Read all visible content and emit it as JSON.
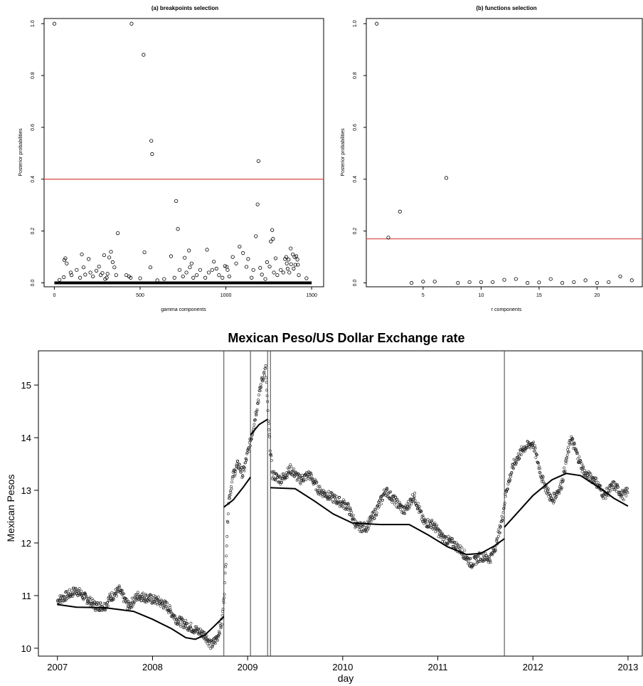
{
  "chart_data": [
    {
      "type": "scatter",
      "title": "(a) breakpoints selection",
      "xlabel": "gamma components",
      "ylabel": "Posterior probabilities",
      "xlim": [
        -60,
        1570
      ],
      "ylim": [
        -0.015,
        1.02
      ],
      "xticks": [
        0,
        500,
        1000,
        1500
      ],
      "yticks": [
        0.0,
        0.2,
        0.4,
        0.6,
        0.8,
        1.0
      ],
      "threshold": 0.4,
      "threshold_color": "#e05555",
      "baseline_range": [
        0,
        1500
      ],
      "points": [
        [
          0,
          1.0
        ],
        [
          450,
          1.0
        ],
        [
          520,
          0.88
        ],
        [
          565,
          0.548
        ],
        [
          570,
          0.497
        ],
        [
          710,
          0.316
        ],
        [
          1190,
          0.47
        ],
        [
          1185,
          0.303
        ],
        [
          720,
          0.208
        ],
        [
          370,
          0.192
        ],
        [
          1270,
          0.204
        ],
        [
          1175,
          0.18
        ],
        [
          1275,
          0.17
        ],
        [
          1262,
          0.16
        ],
        [
          330,
          0.12
        ],
        [
          525,
          0.118
        ],
        [
          890,
          0.128
        ],
        [
          1080,
          0.14
        ],
        [
          1378,
          0.133
        ],
        [
          1390,
          0.11
        ],
        [
          58,
          0.088
        ],
        [
          64,
          0.095
        ],
        [
          72,
          0.075
        ],
        [
          160,
          0.11
        ],
        [
          200,
          0.092
        ],
        [
          290,
          0.107
        ],
        [
          320,
          0.098
        ],
        [
          680,
          0.103
        ],
        [
          760,
          0.097
        ],
        [
          785,
          0.125
        ],
        [
          930,
          0.082
        ],
        [
          1040,
          0.1
        ],
        [
          1130,
          0.092
        ],
        [
          1290,
          0.095
        ],
        [
          1345,
          0.092
        ],
        [
          1352,
          0.1
        ],
        [
          1366,
          0.09
        ],
        [
          1400,
          0.1
        ],
        [
          1410,
          0.103
        ],
        [
          1417,
          0.09
        ],
        [
          1355,
          0.075
        ],
        [
          1380,
          0.072
        ],
        [
          1405,
          0.07
        ],
        [
          30,
          0.012
        ],
        [
          55,
          0.022
        ],
        [
          95,
          0.04
        ],
        [
          100,
          0.03
        ],
        [
          130,
          0.05
        ],
        [
          150,
          0.02
        ],
        [
          170,
          0.06
        ],
        [
          180,
          0.032
        ],
        [
          210,
          0.04
        ],
        [
          225,
          0.025
        ],
        [
          245,
          0.047
        ],
        [
          260,
          0.063
        ],
        [
          270,
          0.03
        ],
        [
          280,
          0.038
        ],
        [
          296,
          0.015
        ],
        [
          305,
          0.02
        ],
        [
          310,
          0.035
        ],
        [
          340,
          0.08
        ],
        [
          350,
          0.06
        ],
        [
          360,
          0.03
        ],
        [
          420,
          0.03
        ],
        [
          435,
          0.025
        ],
        [
          445,
          0.02
        ],
        [
          500,
          0.018
        ],
        [
          560,
          0.06
        ],
        [
          600,
          0.01
        ],
        [
          640,
          0.015
        ],
        [
          700,
          0.02
        ],
        [
          730,
          0.05
        ],
        [
          750,
          0.025
        ],
        [
          770,
          0.04
        ],
        [
          790,
          0.06
        ],
        [
          800,
          0.075
        ],
        [
          810,
          0.02
        ],
        [
          830,
          0.03
        ],
        [
          850,
          0.05
        ],
        [
          880,
          0.02
        ],
        [
          900,
          0.04
        ],
        [
          920,
          0.05
        ],
        [
          945,
          0.055
        ],
        [
          960,
          0.03
        ],
        [
          980,
          0.02
        ],
        [
          995,
          0.065
        ],
        [
          1005,
          0.062
        ],
        [
          1010,
          0.05
        ],
        [
          1020,
          0.025
        ],
        [
          1060,
          0.075
        ],
        [
          1100,
          0.115
        ],
        [
          1120,
          0.062
        ],
        [
          1150,
          0.02
        ],
        [
          1160,
          0.05
        ],
        [
          1200,
          0.058
        ],
        [
          1210,
          0.032
        ],
        [
          1230,
          0.015
        ],
        [
          1240,
          0.08
        ],
        [
          1255,
          0.063
        ],
        [
          1280,
          0.04
        ],
        [
          1300,
          0.03
        ],
        [
          1320,
          0.05
        ],
        [
          1335,
          0.04
        ],
        [
          1360,
          0.055
        ],
        [
          1370,
          0.04
        ],
        [
          1395,
          0.055
        ],
        [
          1420,
          0.07
        ],
        [
          1425,
          0.03
        ],
        [
          1470,
          0.018
        ]
      ]
    },
    {
      "type": "scatter",
      "title": "(b) functions selection",
      "xlabel": "r components",
      "ylabel": "Posterior probabilities",
      "xlim": [
        0.1,
        23.9
      ],
      "ylim": [
        -0.015,
        1.02
      ],
      "xticks": [
        5,
        10,
        15,
        20
      ],
      "yticks": [
        0.0,
        0.2,
        0.4,
        0.6,
        0.8,
        1.0
      ],
      "threshold": 0.17,
      "threshold_color": "#e05555",
      "points": [
        [
          1,
          1.0
        ],
        [
          2,
          0.175
        ],
        [
          3,
          0.275
        ],
        [
          4,
          0.0
        ],
        [
          5,
          0.005
        ],
        [
          6,
          0.005
        ],
        [
          7,
          0.405
        ],
        [
          8,
          0.0
        ],
        [
          9,
          0.003
        ],
        [
          10,
          0.003
        ],
        [
          11,
          0.003
        ],
        [
          12,
          0.012
        ],
        [
          13,
          0.015
        ],
        [
          14,
          0.0
        ],
        [
          15,
          0.002
        ],
        [
          16,
          0.015
        ],
        [
          17,
          0.0
        ],
        [
          18,
          0.003
        ],
        [
          19,
          0.01
        ],
        [
          20,
          0.0
        ],
        [
          21,
          0.003
        ],
        [
          22,
          0.025
        ],
        [
          23,
          0.01
        ]
      ]
    },
    {
      "type": "line",
      "title": "Mexican Peso/US Dollar Exchange rate",
      "xlabel": "day",
      "ylabel": "Mexican Pesos",
      "xlim": [
        2006.8,
        2013.15
      ],
      "ylim": [
        9.85,
        15.65
      ],
      "xticks": [
        2007,
        2008,
        2009,
        2010,
        2011,
        2012,
        2013
      ],
      "yticks": [
        10,
        11,
        12,
        13,
        14,
        15
      ],
      "breakpoints": [
        2008.75,
        2009.03,
        2009.21,
        2009.24,
        2011.7
      ],
      "fitted": [
        [
          [
            2007.0,
            10.83
          ],
          [
            2007.2,
            10.78
          ],
          [
            2007.5,
            10.77
          ],
          [
            2007.8,
            10.7
          ],
          [
            2008.0,
            10.55
          ],
          [
            2008.2,
            10.37
          ],
          [
            2008.35,
            10.2
          ],
          [
            2008.45,
            10.17
          ],
          [
            2008.55,
            10.25
          ],
          [
            2008.65,
            10.42
          ],
          [
            2008.75,
            10.6
          ]
        ],
        [
          [
            2008.75,
            12.68
          ],
          [
            2008.85,
            12.82
          ],
          [
            2008.95,
            13.05
          ],
          [
            2009.03,
            13.25
          ]
        ],
        [
          [
            2009.03,
            14.05
          ],
          [
            2009.12,
            14.25
          ],
          [
            2009.21,
            14.35
          ]
        ],
        [
          [
            2009.24,
            13.05
          ],
          [
            2009.5,
            13.03
          ],
          [
            2009.7,
            12.8
          ],
          [
            2009.9,
            12.55
          ],
          [
            2010.1,
            12.38
          ],
          [
            2010.4,
            12.35
          ],
          [
            2010.7,
            12.35
          ],
          [
            2010.9,
            12.15
          ],
          [
            2011.1,
            11.93
          ],
          [
            2011.3,
            11.78
          ],
          [
            2011.45,
            11.8
          ],
          [
            2011.6,
            11.95
          ],
          [
            2011.7,
            12.08
          ]
        ],
        [
          [
            2011.7,
            12.3
          ],
          [
            2011.85,
            12.6
          ],
          [
            2012.0,
            12.9
          ],
          [
            2012.2,
            13.2
          ],
          [
            2012.35,
            13.32
          ],
          [
            2012.5,
            13.28
          ],
          [
            2012.7,
            13.05
          ],
          [
            2012.85,
            12.85
          ],
          [
            2013.0,
            12.7
          ]
        ]
      ],
      "observed": [
        [
          2007.0,
          10.9
        ],
        [
          2007.1,
          11.0
        ],
        [
          2007.2,
          11.1
        ],
        [
          2007.3,
          10.95
        ],
        [
          2007.4,
          10.8
        ],
        [
          2007.5,
          10.8
        ],
        [
          2007.55,
          10.95
        ],
        [
          2007.65,
          11.1
        ],
        [
          2007.75,
          10.8
        ],
        [
          2007.85,
          11.0
        ],
        [
          2007.95,
          10.95
        ],
        [
          2008.05,
          10.9
        ],
        [
          2008.15,
          10.8
        ],
        [
          2008.25,
          10.55
        ],
        [
          2008.35,
          10.45
        ],
        [
          2008.45,
          10.35
        ],
        [
          2008.55,
          10.25
        ],
        [
          2008.62,
          10.05
        ],
        [
          2008.68,
          10.2
        ],
        [
          2008.73,
          10.5
        ],
        [
          2008.76,
          11.2
        ],
        [
          2008.8,
          12.8
        ],
        [
          2008.85,
          13.3
        ],
        [
          2008.9,
          13.5
        ],
        [
          2008.95,
          13.3
        ],
        [
          2009.0,
          13.7
        ],
        [
          2009.05,
          14.1
        ],
        [
          2009.1,
          14.6
        ],
        [
          2009.15,
          15.1
        ],
        [
          2009.19,
          15.3
        ],
        [
          2009.22,
          14.2
        ],
        [
          2009.26,
          13.3
        ],
        [
          2009.35,
          13.2
        ],
        [
          2009.45,
          13.4
        ],
        [
          2009.55,
          13.2
        ],
        [
          2009.65,
          13.3
        ],
        [
          2009.75,
          13.0
        ],
        [
          2009.85,
          12.9
        ],
        [
          2009.95,
          12.8
        ],
        [
          2010.05,
          12.7
        ],
        [
          2010.15,
          12.3
        ],
        [
          2010.25,
          12.3
        ],
        [
          2010.35,
          12.6
        ],
        [
          2010.45,
          13.0
        ],
        [
          2010.55,
          12.8
        ],
        [
          2010.65,
          12.6
        ],
        [
          2010.75,
          12.9
        ],
        [
          2010.85,
          12.4
        ],
        [
          2010.95,
          12.35
        ],
        [
          2011.05,
          12.1
        ],
        [
          2011.15,
          12.0
        ],
        [
          2011.25,
          11.85
        ],
        [
          2011.35,
          11.6
        ],
        [
          2011.45,
          11.75
        ],
        [
          2011.55,
          11.7
        ],
        [
          2011.62,
          12.0
        ],
        [
          2011.68,
          12.5
        ],
        [
          2011.72,
          13.0
        ],
        [
          2011.8,
          13.5
        ],
        [
          2011.9,
          13.8
        ],
        [
          2012.0,
          13.9
        ],
        [
          2012.1,
          13.2
        ],
        [
          2012.2,
          12.8
        ],
        [
          2012.3,
          13.1
        ],
        [
          2012.4,
          14.0
        ],
        [
          2012.48,
          13.6
        ],
        [
          2012.55,
          13.3
        ],
        [
          2012.65,
          13.2
        ],
        [
          2012.75,
          12.9
        ],
        [
          2012.85,
          13.1
        ],
        [
          2012.95,
          12.9
        ],
        [
          2013.0,
          13.0
        ]
      ]
    }
  ]
}
